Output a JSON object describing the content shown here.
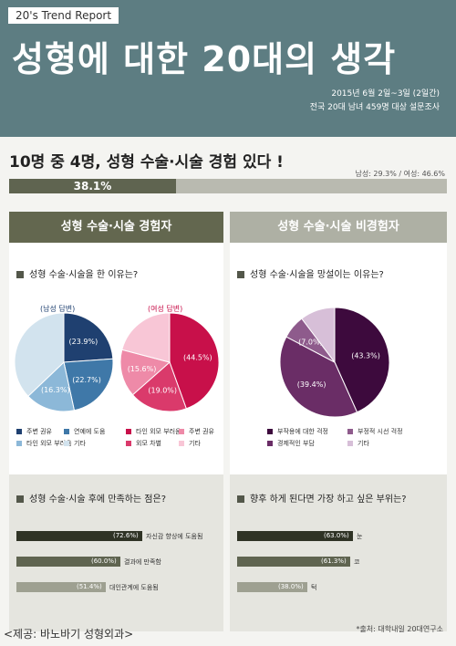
{
  "header": {
    "tag": "20's Trend Report",
    "title": "성형에 대한 20대의 생각",
    "date": "2015년 6월 2일~3일 (2일간)",
    "survey": "전국 20대 남녀 459명 대상 설문조사"
  },
  "headline": "10명 중 4명, 성형 수술·시술 경험 있다 !",
  "gender_note": "남성: 29.3% / 여성: 46.6%",
  "experience_bar": {
    "label": "38.1%",
    "value": 38.1,
    "max": 100
  },
  "left": {
    "banner": "성형 수술·시술 경험자",
    "question": "성형 수술·시술을 한 이유는?",
    "male_sub": "남성 답변",
    "female_sub": "여성 답변",
    "legend": [
      "주변 권유",
      "연예에 도움",
      "타인 외모 부러움",
      "기타",
      "타인 외모 부러움",
      "주변 권유",
      "외모 차별",
      "기타"
    ],
    "question2": "성형 수술·시술 후에 만족하는 점은?"
  },
  "right": {
    "banner": "성형 수술·시술 비경험자",
    "question": "성형 수술·시술을 망설이는 이유는?",
    "legend": [
      "부작용에 대한 걱정",
      "부정적 시선 걱정",
      "경제적인 부담",
      "기타"
    ],
    "question2": "향후 하게 된다면 가장 하고 싶은 부위는?"
  },
  "footer": {
    "source": "*출처: 대학내일 20대연구소",
    "credit": "<제공: 바노바기 성형외과>"
  },
  "colors": {
    "header_bg": "#5d7d82",
    "dark_olive": "#5f6450",
    "gray_olive": "#aeb0a4"
  },
  "chart_data": [
    {
      "type": "pie",
      "title": "남성 답변",
      "labels": [
        "주변 권유",
        "연예에 도움",
        "타인 외모 부러움",
        "기타"
      ],
      "values": [
        23.9,
        22.7,
        16.3,
        37.1
      ],
      "value_labels": [
        "(23.9%)",
        "(22.7%)",
        "(16.3%)",
        ""
      ],
      "colors": [
        "#1f4070",
        "#3f78a8",
        "#8cb8d8",
        "#d2e3ee"
      ]
    },
    {
      "type": "pie",
      "title": "여성 답변",
      "labels": [
        "타인 외모 부러움",
        "외모 차별",
        "주변 권유",
        "기타"
      ],
      "values": [
        44.5,
        19.0,
        15.6,
        20.9
      ],
      "value_labels": [
        "(44.5%)",
        "(19.0%)",
        "(15.6%)",
        ""
      ],
      "colors": [
        "#c8104a",
        "#da3a6b",
        "#ee8aa8",
        "#f8c6d6"
      ]
    },
    {
      "type": "pie",
      "title": "",
      "labels": [
        "부작용에 대한 걱정",
        "부정적 시선 걱정",
        "경제적인 부담",
        "기타"
      ],
      "values": [
        43.3,
        39.4,
        7.0,
        10.3
      ],
      "value_labels": [
        "(43.3%)",
        "(39.4%)",
        "(7.0%)",
        ""
      ],
      "colors": [
        "#3d0a3d",
        "#6a2d66",
        "#8e5b8c",
        "#d7bfd8"
      ]
    },
    {
      "type": "bar",
      "orientation": "horizontal",
      "title": "성형 수술·시술 후에 만족하는 점은?",
      "categories": [
        "자신감 향상에 도움됨",
        "결과에 만족함",
        "대인관계에 도움됨"
      ],
      "values": [
        72.6,
        60.0,
        51.4
      ],
      "value_labels": [
        "(72.6%)",
        "(60.0%)",
        "(51.4%)"
      ],
      "colors": [
        "#2f3325",
        "#5f6450",
        "#9ea091"
      ],
      "xlim": [
        0,
        100
      ]
    },
    {
      "type": "bar",
      "orientation": "horizontal",
      "title": "향후 하게 된다면 가장 하고 싶은 부위는?",
      "categories": [
        "눈",
        "코",
        "턱"
      ],
      "values": [
        63.0,
        61.3,
        38.0
      ],
      "value_labels": [
        "(63.0%)",
        "(61.3%)",
        "(38.0%)"
      ],
      "colors": [
        "#2f3325",
        "#5f6450",
        "#9ea091"
      ],
      "xlim": [
        0,
        100
      ]
    }
  ]
}
